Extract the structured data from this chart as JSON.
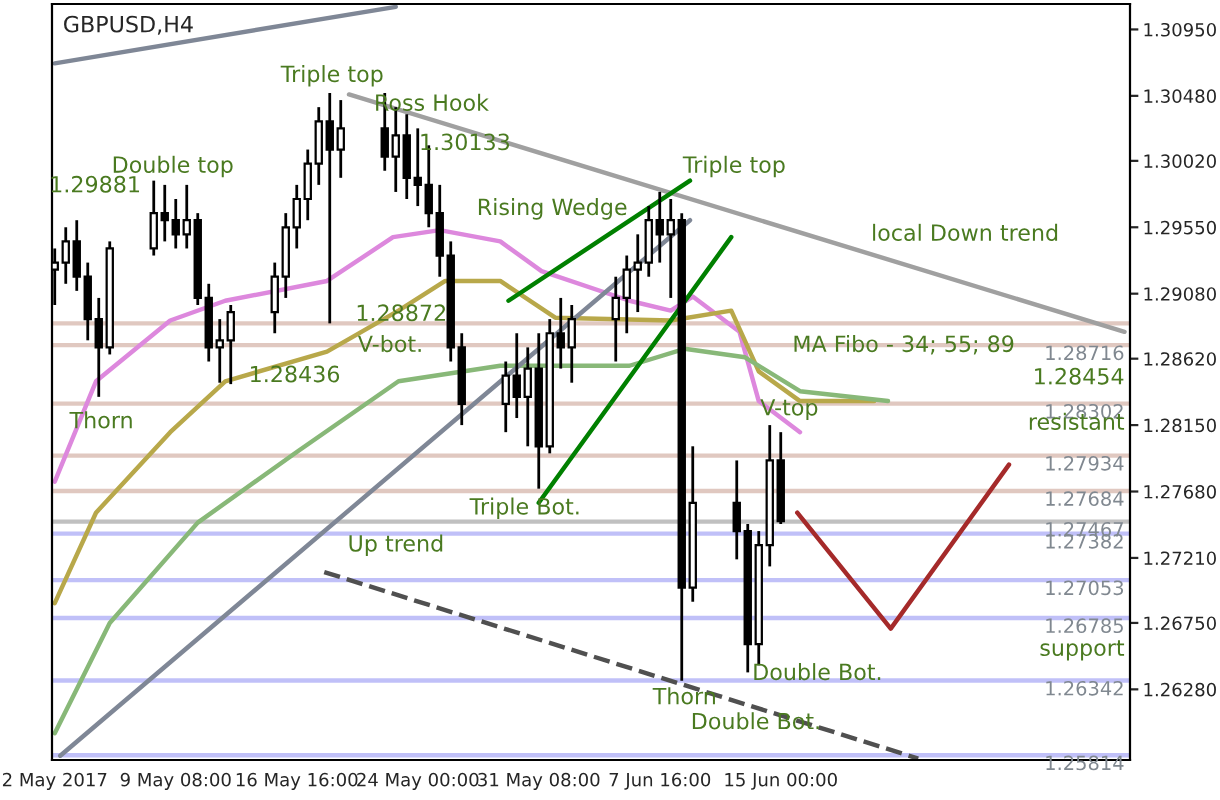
{
  "chart_data": {
    "type": "candlestick",
    "title": "GBPUSD,H4",
    "x": [
      "2017-05-02T00:00",
      "2017-05-02T16:00",
      "2017-05-03T08:00",
      "2017-05-04T00:00",
      "2017-05-04T16:00",
      "2017-05-05T08:00",
      "2017-05-08T00:00",
      "2017-05-08T16:00",
      "2017-05-09T08:00",
      "2017-05-10T00:00",
      "2017-05-10T16:00",
      "2017-05-11T08:00",
      "2017-05-12T00:00",
      "2017-05-12T16:00",
      "2017-05-15T08:00",
      "2017-05-16T00:00",
      "2017-05-16T16:00",
      "2017-05-17T08:00",
      "2017-05-18T00:00",
      "2017-05-18T16:00",
      "2017-05-19T08:00",
      "2017-05-22T00:00",
      "2017-05-22T16:00",
      "2017-05-23T08:00",
      "2017-05-24T00:00",
      "2017-05-24T16:00",
      "2017-05-25T08:00",
      "2017-05-26T00:00",
      "2017-05-26T16:00",
      "2017-05-29T08:00",
      "2017-05-30T00:00",
      "2017-05-30T16:00",
      "2017-05-31T08:00",
      "2017-06-01T00:00",
      "2017-06-01T16:00",
      "2017-06-02T08:00",
      "2017-06-05T00:00",
      "2017-06-05T16:00",
      "2017-06-06T08:00",
      "2017-06-07T00:00",
      "2017-06-07T16:00",
      "2017-06-08T08:00",
      "2017-06-09T00:00",
      "2017-06-09T16:00",
      "2017-06-12T08:00",
      "2017-06-13T00:00",
      "2017-06-13T16:00",
      "2017-06-14T08:00",
      "2017-06-15T00:00"
    ],
    "ohlc": [
      [
        1.2925,
        1.294,
        1.29,
        1.293
      ],
      [
        1.293,
        1.2955,
        1.2915,
        1.2945
      ],
      [
        1.2945,
        1.296,
        1.291,
        1.292
      ],
      [
        1.292,
        1.293,
        1.2875,
        1.289
      ],
      [
        1.289,
        1.2905,
        1.2835,
        1.287
      ],
      [
        1.287,
        1.2945,
        1.2865,
        1.294
      ],
      [
        1.294,
        1.2988,
        1.2935,
        1.2965
      ],
      [
        1.2965,
        1.2985,
        1.2945,
        1.296
      ],
      [
        1.296,
        1.2975,
        1.294,
        1.295
      ],
      [
        1.295,
        1.2985,
        1.294,
        1.296
      ],
      [
        1.296,
        1.2965,
        1.29,
        1.2905
      ],
      [
        1.2905,
        1.2915,
        1.286,
        1.287
      ],
      [
        1.287,
        1.289,
        1.2845,
        1.2875
      ],
      [
        1.2875,
        1.29,
        1.2844,
        1.2895
      ],
      [
        1.2895,
        1.293,
        1.288,
        1.292
      ],
      [
        1.292,
        1.2965,
        1.2905,
        1.2955
      ],
      [
        1.2955,
        1.2985,
        1.294,
        1.2975
      ],
      [
        1.2975,
        1.301,
        1.296,
        1.3
      ],
      [
        1.3,
        1.304,
        1.2985,
        1.303
      ],
      [
        1.303,
        1.305,
        1.2887,
        1.301
      ],
      [
        1.301,
        1.3045,
        1.299,
        1.3025
      ],
      [
        1.3025,
        1.305,
        1.2995,
        1.3005
      ],
      [
        1.3005,
        1.304,
        1.298,
        1.302
      ],
      [
        1.302,
        1.3035,
        1.2975,
        1.299
      ],
      [
        1.299,
        1.3025,
        1.297,
        1.2985
      ],
      [
        1.2985,
        1.3013,
        1.2955,
        1.2965
      ],
      [
        1.2965,
        1.2985,
        1.292,
        1.2935
      ],
      [
        1.2935,
        1.2945,
        1.286,
        1.287
      ],
      [
        1.287,
        1.288,
        1.2815,
        1.283
      ],
      [
        1.283,
        1.286,
        1.281,
        1.285
      ],
      [
        1.285,
        1.288,
        1.282,
        1.2835
      ],
      [
        1.2835,
        1.287,
        1.28,
        1.2855
      ],
      [
        1.2855,
        1.288,
        1.277,
        1.28
      ],
      [
        1.28,
        1.289,
        1.2795,
        1.288
      ],
      [
        1.288,
        1.2905,
        1.2855,
        1.287
      ],
      [
        1.287,
        1.29,
        1.2845,
        1.289
      ],
      [
        1.289,
        1.292,
        1.286,
        1.2905
      ],
      [
        1.2905,
        1.2935,
        1.288,
        1.2925
      ],
      [
        1.2925,
        1.295,
        1.2895,
        1.293
      ],
      [
        1.293,
        1.297,
        1.292,
        1.296
      ],
      [
        1.296,
        1.298,
        1.293,
        1.295
      ],
      [
        1.295,
        1.2975,
        1.2905,
        1.296
      ],
      [
        1.296,
        1.2965,
        1.2634,
        1.27
      ],
      [
        1.27,
        1.28,
        1.269,
        1.276
      ],
      [
        1.276,
        1.279,
        1.272,
        1.274
      ],
      [
        1.274,
        1.2745,
        1.264,
        1.266
      ],
      [
        1.266,
        1.274,
        1.2645,
        1.273
      ],
      [
        1.273,
        1.2815,
        1.2715,
        1.279
      ],
      [
        1.279,
        1.281,
        1.2745,
        1.2747
      ]
    ],
    "series": [
      {
        "type": "line",
        "color": "#dd88dd",
        "x": [
          "2017-05-02T00:00",
          "2017-05-04T12:00",
          "2017-05-09T00:00",
          "2017-05-12T08:00",
          "2017-05-18T12:00",
          "2017-05-22T12:00",
          "2017-05-25T08:00",
          "2017-05-29T00:00",
          "2017-05-31T12:00",
          "2017-06-05T20:00",
          "2017-06-08T08:00",
          "2017-06-09T16:00",
          "2017-06-12T12:00",
          "2017-06-13T16:00",
          "2017-06-16T04:00"
        ],
        "values": [
          1.2775,
          1.2846,
          1.2889,
          1.2903,
          1.2917,
          1.2948,
          1.2953,
          1.2945,
          1.2924,
          1.2903,
          1.2896,
          1.2906,
          1.2881,
          1.2832,
          1.281
        ]
      },
      {
        "type": "line",
        "color": "#b8a84a",
        "x": [
          "2017-05-02T00:00",
          "2017-05-04T12:00",
          "2017-05-09T00:00",
          "2017-05-12T08:00",
          "2017-05-18T12:00",
          "2017-05-22T20:00",
          "2017-05-25T16:00",
          "2017-05-29T00:00",
          "2017-06-01T08:00",
          "2017-06-08T08:00",
          "2017-06-12T00:00",
          "2017-06-13T16:00",
          "2017-06-16T04:00",
          "2017-06-20T16:00"
        ],
        "values": [
          1.2689,
          1.2753,
          1.281,
          1.2846,
          1.2867,
          1.2896,
          1.2917,
          1.2917,
          1.2891,
          1.2889,
          1.2896,
          1.2853,
          1.2832,
          1.2832
        ]
      },
      {
        "type": "line",
        "color": "#88b878",
        "x": [
          "2017-05-02T00:00",
          "2017-05-05T08:00",
          "2017-05-10T16:00",
          "2017-05-16T16:00",
          "2017-05-22T20:00",
          "2017-05-29T00:00",
          "2017-06-05T20:00",
          "2017-06-09T04:00",
          "2017-06-12T20:00",
          "2017-06-16T04:00",
          "2017-06-21T12:00"
        ],
        "values": [
          1.2597,
          1.2675,
          1.2746,
          1.2796,
          1.2846,
          1.2857,
          1.2857,
          1.2869,
          1.2863,
          1.2839,
          1.2832
        ]
      },
      {
        "type": "line",
        "color": "#7f8796",
        "x": [
          "2017-05-02T08:00",
          "2017-06-09T12:00"
        ],
        "values": [
          1.2581,
          1.296
        ]
      },
      {
        "type": "line",
        "color": "#7f8796",
        "x": [
          "2017-05-02T00:00",
          "2017-05-22T16:00"
        ],
        "values": [
          1.3071,
          1.3111
        ]
      },
      {
        "type": "line",
        "color": "#a0a0a0",
        "x": [
          "2017-05-19T20:00",
          "2017-07-05T20:00"
        ],
        "values": [
          1.3049,
          1.2881
        ]
      },
      {
        "type": "line",
        "color": "#008000",
        "x": [
          "2017-05-29T12:00",
          "2017-06-09T12:00"
        ],
        "values": [
          1.2903,
          1.2988
        ]
      },
      {
        "type": "line",
        "color": "#008000",
        "x": [
          "2017-05-31T08:00",
          "2017-06-12T00:00"
        ],
        "values": [
          1.276,
          1.2948
        ]
      },
      {
        "type": "line",
        "color": "#505050",
        "line_style": "dashed",
        "x": [
          "2017-05-18T08:00",
          "2017-06-23T08:00"
        ],
        "values": [
          1.2711,
          1.2579
        ]
      },
      {
        "type": "line",
        "color": "#a52a2a",
        "x": [
          "2017-06-16T00:00",
          "2017-06-21T16:00",
          "2017-06-28T20:00"
        ],
        "values": [
          1.2753,
          1.2671,
          1.2787
        ]
      }
    ],
    "ref_lines": [
      {
        "axis": "y",
        "value": 1.2887,
        "label": null,
        "color": "#e0c8c0"
      },
      {
        "axis": "y",
        "value": 1.28716,
        "label": "1.28716",
        "color": "#e0c8c0"
      },
      {
        "axis": "y",
        "value": 1.28302,
        "label": "1.28302",
        "color": "#e0c8c0"
      },
      {
        "axis": "y",
        "value": 1.27934,
        "label": "1.27934",
        "color": "#e0c8c0"
      },
      {
        "axis": "y",
        "value": 1.27684,
        "label": "1.27684",
        "color": "#e0c8c0"
      },
      {
        "axis": "y",
        "value": 1.27467,
        "label": "1.27467",
        "color": "#c0c0c0"
      },
      {
        "axis": "y",
        "value": 1.27382,
        "label": "1.27382",
        "color": "#c0c0f8"
      },
      {
        "axis": "y",
        "value": 1.27053,
        "label": "1.27053",
        "color": "#c0c0f8"
      },
      {
        "axis": "y",
        "value": 1.26785,
        "label": "1.26785",
        "color": "#c0c0f8"
      },
      {
        "axis": "y",
        "value": 1.26342,
        "label": "1.26342",
        "color": "#c0c0f8"
      },
      {
        "axis": "y",
        "value": 1.25814,
        "label": "1.25814",
        "color": "#c0c0f8"
      }
    ],
    "annotations": [
      "Triple top",
      "Ross Hook",
      "1.30133",
      "Double top",
      "1.29881",
      "Rising Wedge",
      "Triple top",
      "local Down trend",
      "1.28872",
      "V-bot.",
      "1.28436",
      "Thorn",
      "MA Fibo - 34; 55; 89",
      "1.28454",
      "V-top",
      "resistant",
      "Triple Bot.",
      "Up trend",
      "support",
      "Double Bot.",
      "Thorn",
      "Double Bot."
    ],
    "xlim": [
      "2017-05-01T20:00",
      "2017-07-06T04:00"
    ],
    "ylim": [
      1.2578,
      1.3113
    ],
    "xticks": [
      {
        "value": "2017-05-02T00:00",
        "label": "2 May 2017"
      },
      {
        "value": "2017-05-09T08:00",
        "label": "9 May 08:00"
      },
      {
        "value": "2017-05-16T16:00",
        "label": "16 May 16:00"
      },
      {
        "value": "2017-05-24T00:00",
        "label": "24 May 00:00"
      },
      {
        "value": "2017-05-31T08:00",
        "label": "31 May 08:00"
      },
      {
        "value": "2017-06-07T16:00",
        "label": "7 Jun 16:00"
      },
      {
        "value": "2017-06-15T00:00",
        "label": "15 Jun 00:00"
      }
    ],
    "yticks": [
      {
        "value": 1.3095,
        "label": "1.30950"
      },
      {
        "value": 1.3048,
        "label": "1.30480"
      },
      {
        "value": 1.3002,
        "label": "1.30020"
      },
      {
        "value": 1.2955,
        "label": "1.29550"
      },
      {
        "value": 1.2908,
        "label": "1.29080"
      },
      {
        "value": 1.2862,
        "label": "1.28620"
      },
      {
        "value": 1.2815,
        "label": "1.28150"
      },
      {
        "value": 1.2768,
        "label": "1.27680"
      },
      {
        "value": 1.2721,
        "label": "1.27210"
      },
      {
        "value": 1.2675,
        "label": "1.26750"
      },
      {
        "value": 1.2628,
        "label": "1.26280"
      }
    ],
    "grid": false,
    "legend": false
  }
}
